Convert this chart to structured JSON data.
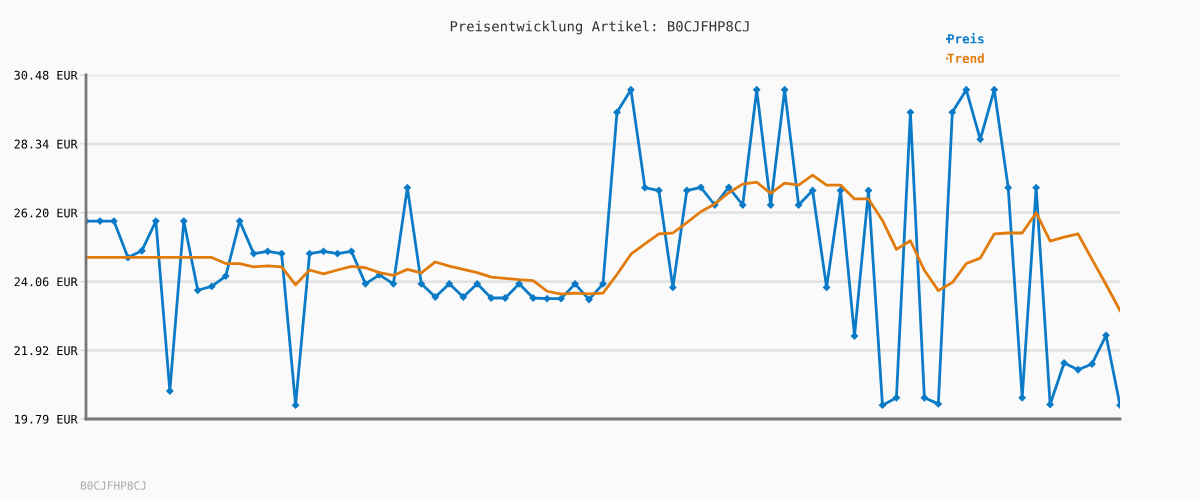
{
  "chart_data": {
    "type": "line",
    "title": "Preisentwicklung Artikel: B0CJFHP8CJ",
    "categories": [
      null,
      null,
      null,
      null,
      null,
      null,
      null,
      null,
      null,
      null,
      null,
      null,
      null,
      null,
      null,
      null,
      null,
      null,
      null,
      null,
      null,
      null,
      null,
      null,
      null,
      null,
      null,
      null,
      null,
      null,
      null,
      null,
      null,
      null,
      null,
      null,
      null,
      null,
      null,
      null,
      null,
      null,
      null,
      null,
      null,
      null,
      null,
      null,
      null,
      null,
      null,
      null,
      null,
      null,
      null,
      null,
      null,
      null,
      null,
      null,
      null,
      null,
      null,
      null,
      null,
      null,
      null,
      null,
      null,
      null,
      null,
      null,
      null,
      null,
      null
    ],
    "series": [
      {
        "name": "Preis",
        "color": "#0b7bc7",
        "marker": "diamond",
        "values": [
          25.94,
          25.94,
          25.94,
          24.81,
          25.02,
          25.94,
          20.66,
          25.94,
          23.79,
          23.91,
          24.23,
          25.94,
          24.93,
          25.0,
          24.93,
          20.22,
          24.93,
          25.0,
          24.93,
          25.0,
          23.99,
          24.27,
          23.99,
          26.98,
          23.99,
          23.58,
          23.99,
          23.58,
          23.99,
          23.55,
          23.55,
          23.99,
          23.55,
          23.53,
          23.53,
          23.99,
          23.5,
          23.99,
          29.32,
          30.02,
          26.98,
          26.89,
          23.88,
          26.89,
          26.99,
          26.44,
          26.99,
          26.44,
          30.02,
          26.44,
          30.02,
          26.44,
          26.89,
          23.88,
          26.89,
          22.37,
          26.89,
          20.22,
          20.45,
          29.32,
          20.45,
          20.26,
          29.32,
          30.02,
          28.48,
          30.02,
          26.98,
          20.45,
          26.98,
          20.24,
          21.53,
          21.32,
          21.5,
          22.39,
          20.22
        ]
      },
      {
        "name": "Trend",
        "color": "#e07b0c",
        "marker": "none",
        "values": [
          24.81,
          24.81,
          24.81,
          24.81,
          24.81,
          24.81,
          24.81,
          24.81,
          24.81,
          24.81,
          24.62,
          24.62,
          24.52,
          24.55,
          24.52,
          23.96,
          24.42,
          24.3,
          24.42,
          24.53,
          24.49,
          24.34,
          24.25,
          24.44,
          24.33,
          24.67,
          24.54,
          24.44,
          24.34,
          24.2,
          24.16,
          24.12,
          24.09,
          23.76,
          23.67,
          23.7,
          23.68,
          23.7,
          24.28,
          24.91,
          25.23,
          25.54,
          25.57,
          25.89,
          26.23,
          26.47,
          26.82,
          27.09,
          27.15,
          26.8,
          27.12,
          27.06,
          27.37,
          27.06,
          27.06,
          26.63,
          26.63,
          25.96,
          25.06,
          25.33,
          24.41,
          23.78,
          24.03,
          24.62,
          24.79,
          25.54,
          25.57,
          25.57,
          26.2,
          25.32,
          25.44,
          25.54,
          24.75,
          23.97,
          23.16
        ]
      }
    ],
    "ylim": [
      19.79,
      30.48
    ],
    "yticks": [
      {
        "value": 19.79,
        "label": "19.79 EUR"
      },
      {
        "value": 21.92,
        "label": "21.92 EUR"
      },
      {
        "value": 24.06,
        "label": "24.06 EUR"
      },
      {
        "value": 26.2,
        "label": "26.20 EUR"
      },
      {
        "value": 28.34,
        "label": "28.34 EUR"
      },
      {
        "value": 30.48,
        "label": "30.48 EUR"
      }
    ],
    "grid": "y",
    "legend": "top right",
    "tick_labels": "y",
    "annotations": [
      "B0CJFHP8CJ"
    ]
  }
}
